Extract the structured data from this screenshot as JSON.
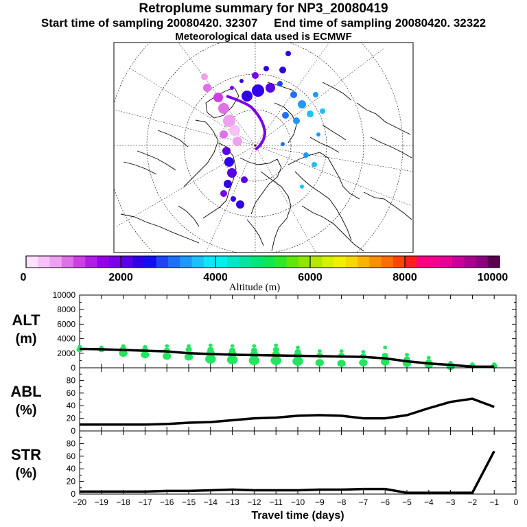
{
  "header": {
    "title": "Retroplume summary for NP3_20080419",
    "start_label": "Start time of sampling 20080420. 32307",
    "end_label": "End time of sampling 20080420. 32322",
    "met_label": "Meteorological data used is ECMWF"
  },
  "colorbar": {
    "label": "Altitude (m)",
    "min": 0,
    "max": 10000,
    "tick_labels": [
      "0",
      "2000",
      "4000",
      "6000",
      "8000",
      "10000"
    ],
    "tick_values": [
      0,
      2000,
      4000,
      6000,
      8000,
      10000
    ],
    "colors": [
      "#fde0fd",
      "#f8c0f8",
      "#efa0f0",
      "#e070ea",
      "#cc40e6",
      "#b01ee6",
      "#9600e6",
      "#7a00e6",
      "#5a00e6",
      "#3000e6",
      "#1010f0",
      "#1e46f0",
      "#1e70f5",
      "#1e98fa",
      "#1ec0fa",
      "#10e6fa",
      "#00f0f0",
      "#00e6c8",
      "#00e6a0",
      "#00e678",
      "#10e650",
      "#30e628",
      "#60e60a",
      "#90e600",
      "#b4e600",
      "#d6f000",
      "#f0f000",
      "#f5d800",
      "#fab400",
      "#fa9000",
      "#fa6e00",
      "#fa4600",
      "#ff1e1e",
      "#ff0080",
      "#f5008c",
      "#e60096",
      "#c8009b",
      "#aa0090",
      "#8c0080",
      "#5a0050"
    ]
  },
  "chart_data": [
    {
      "type": "scatter_line",
      "id": "alt",
      "title": "",
      "ylabel": "ALT",
      "yunit": "(m)",
      "xlabel": "Travel time (days)",
      "xlim": [
        -20,
        0
      ],
      "ylim": [
        0,
        10000
      ],
      "yticks": [
        0,
        2000,
        4000,
        6000,
        8000,
        10000
      ],
      "line_x": [
        -20,
        -19,
        -18,
        -17,
        -16,
        -15,
        -14,
        -13,
        -12,
        -11,
        -10,
        -9,
        -8,
        -7,
        -6,
        -5,
        -4,
        -3,
        -2,
        -1
      ],
      "line_y": [
        2600,
        2550,
        2450,
        2350,
        2250,
        2000,
        1900,
        1800,
        1750,
        1700,
        1650,
        1600,
        1550,
        1500,
        1300,
        900,
        600,
        400,
        150,
        150
      ],
      "clusters": [
        {
          "x": -20,
          "y": [
            2900,
            2500
          ]
        },
        {
          "x": -19,
          "y": [
            2800,
            2500
          ]
        },
        {
          "x": -18,
          "y": [
            3000,
            2600,
            2000
          ]
        },
        {
          "x": -17,
          "y": [
            2900,
            2500,
            1800
          ]
        },
        {
          "x": -16,
          "y": [
            3000,
            2400,
            1600
          ]
        },
        {
          "x": -15,
          "y": [
            3000,
            2500,
            1500
          ]
        },
        {
          "x": -14,
          "y": [
            3100,
            2500,
            2000,
            1200
          ]
        },
        {
          "x": -13,
          "y": [
            3000,
            2400,
            1900,
            1100
          ]
        },
        {
          "x": -12,
          "y": [
            3000,
            2400,
            1800,
            1000
          ]
        },
        {
          "x": -11,
          "y": [
            3100,
            2500,
            1800,
            1000
          ]
        },
        {
          "x": -10,
          "y": [
            2800,
            2200,
            1700,
            900
          ]
        },
        {
          "x": -9,
          "y": [
            2300,
            1700,
            700
          ]
        },
        {
          "x": -8,
          "y": [
            2300,
            1700,
            600
          ]
        },
        {
          "x": -7,
          "y": [
            2200,
            1600,
            700
          ]
        },
        {
          "x": -6,
          "y": [
            2800,
            1700,
            800
          ]
        },
        {
          "x": -5,
          "y": [
            1800,
            1200,
            600
          ]
        },
        {
          "x": -4,
          "y": [
            1400,
            800,
            400
          ]
        },
        {
          "x": -3,
          "y": [
            700,
            400,
            200
          ]
        },
        {
          "x": -2,
          "y": [
            500,
            250
          ]
        },
        {
          "x": -1,
          "y": [
            500,
            250
          ]
        }
      ]
    },
    {
      "type": "line",
      "id": "abl",
      "ylabel": "ABL",
      "yunit": "(%)",
      "xlim": [
        -20,
        0
      ],
      "ylim": [
        0,
        100
      ],
      "yticks": [
        0,
        20,
        40,
        60,
        80
      ],
      "x": [
        -20,
        -19,
        -18,
        -17,
        -16,
        -15,
        -14,
        -13,
        -12,
        -11,
        -10,
        -9,
        -8,
        -7,
        -6,
        -5,
        -4,
        -3,
        -2,
        -1
      ],
      "y": [
        10,
        10,
        10,
        10,
        11,
        13,
        14,
        17,
        20,
        21,
        24,
        25,
        24,
        20,
        20,
        25,
        36,
        46,
        51,
        38
      ]
    },
    {
      "type": "line",
      "id": "str",
      "ylabel": "STR",
      "yunit": "(%)",
      "xlim": [
        -20,
        0
      ],
      "ylim": [
        0,
        100
      ],
      "yticks": [
        0,
        20,
        40,
        60,
        80
      ],
      "xticks": [
        -20,
        -19,
        -18,
        -17,
        -16,
        -15,
        -14,
        -13,
        -12,
        -11,
        -10,
        -9,
        -8,
        -7,
        -6,
        -5,
        -4,
        -3,
        -2,
        -1,
        0
      ],
      "x": [
        -20,
        -19,
        -18,
        -17,
        -16,
        -15,
        -14,
        -13,
        -12,
        -11,
        -10,
        -9,
        -8,
        -7,
        -6,
        -5,
        -4,
        -3,
        -2,
        -1
      ],
      "y": [
        4,
        4,
        4,
        4,
        5,
        5,
        6,
        7,
        6,
        6,
        6,
        7,
        7,
        8,
        8,
        2,
        2,
        2,
        2,
        68
      ]
    }
  ]
}
